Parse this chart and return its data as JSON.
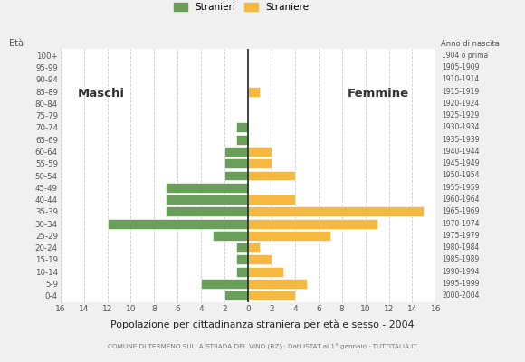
{
  "age_groups": [
    "0-4",
    "5-9",
    "10-14",
    "15-19",
    "20-24",
    "25-29",
    "30-34",
    "35-39",
    "40-44",
    "45-49",
    "50-54",
    "55-59",
    "60-64",
    "65-69",
    "70-74",
    "75-79",
    "80-84",
    "85-89",
    "90-94",
    "95-99",
    "100+"
  ],
  "birth_years": [
    "2000-2004",
    "1995-1999",
    "1990-1994",
    "1985-1989",
    "1980-1984",
    "1975-1979",
    "1970-1974",
    "1965-1969",
    "1960-1964",
    "1955-1959",
    "1950-1954",
    "1945-1949",
    "1940-1944",
    "1935-1939",
    "1930-1934",
    "1925-1929",
    "1920-1924",
    "1915-1919",
    "1910-1914",
    "1905-1909",
    "1904 o prima"
  ],
  "males": [
    2,
    4,
    1,
    1,
    1,
    3,
    12,
    7,
    7,
    7,
    2,
    2,
    2,
    1,
    1,
    0,
    0,
    0,
    0,
    0,
    0
  ],
  "females": [
    4,
    5,
    3,
    2,
    1,
    7,
    11,
    15,
    4,
    0,
    4,
    2,
    2,
    0,
    0,
    0,
    0,
    1,
    0,
    0,
    0
  ],
  "male_color": "#6a9e5b",
  "female_color": "#f5b942",
  "bg_color": "#f0f0f0",
  "bar_bg_color": "#ffffff",
  "title": "Popolazione per cittadinanza straniera per età e sesso - 2004",
  "subtitle": "COMUNE DI TERMENO SULLA STRADA DEL VINO (BZ) · Dati ISTAT al 1° gennaio · TUTTITALIA.IT",
  "legend_males": "Stranieri",
  "legend_females": "Straniere",
  "label_eta": "Età",
  "label_anno": "Anno di nascita",
  "label_maschi": "Maschi",
  "label_femmine": "Femmine",
  "xlim": 16,
  "grid_color": "#cccccc",
  "axis_label_color": "#555555",
  "bar_edge_color": "white",
  "center_line_color": "#222222"
}
